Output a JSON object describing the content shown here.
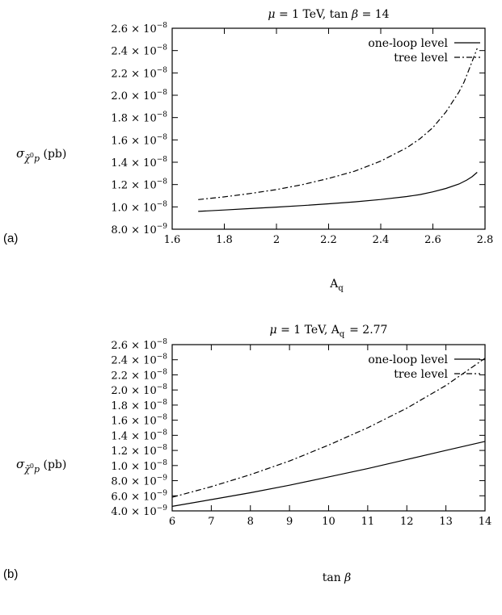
{
  "chart_data": [
    {
      "panel": "(a)",
      "type": "line",
      "title": "μ = 1 TeV, tan β = 14",
      "xlabel": "A_q",
      "ylabel": "σ_χ̃⁰p (pb)",
      "xlim": [
        1.6,
        2.8
      ],
      "ylim": [
        8e-09,
        2.6e-08
      ],
      "x_ticks": [
        1.6,
        1.8,
        2.0,
        2.2,
        2.4,
        2.6,
        2.8
      ],
      "x_tick_labels": [
        "1.6",
        "1.8",
        "2",
        "2.2",
        "2.4",
        "2.6",
        "2.8"
      ],
      "y_ticks": [
        8e-09,
        1e-08,
        1.2e-08,
        1.4e-08,
        1.6e-08,
        1.8e-08,
        2e-08,
        2.2e-08,
        2.4e-08,
        2.6e-08
      ],
      "y_tick_labels": [
        {
          "mant": "8.0",
          "exp": "−9"
        },
        {
          "mant": "1.0",
          "exp": "−8"
        },
        {
          "mant": "1.2",
          "exp": "−8"
        },
        {
          "mant": "1.4",
          "exp": "−8"
        },
        {
          "mant": "1.6",
          "exp": "−8"
        },
        {
          "mant": "1.8",
          "exp": "−8"
        },
        {
          "mant": "2.0",
          "exp": "−8"
        },
        {
          "mant": "2.2",
          "exp": "−8"
        },
        {
          "mant": "2.4",
          "exp": "−8"
        },
        {
          "mant": "2.6",
          "exp": "−8"
        }
      ],
      "legend_position": "top-right",
      "series": [
        {
          "name": "one-loop level",
          "style": "solid",
          "x": [
            1.7,
            1.8,
            1.9,
            2.0,
            2.1,
            2.2,
            2.3,
            2.4,
            2.5,
            2.55,
            2.6,
            2.65,
            2.7,
            2.73,
            2.75,
            2.77
          ],
          "y": [
            9.6e-09,
            9.72e-09,
            9.85e-09,
            9.98e-09,
            1.012e-08,
            1.028e-08,
            1.045e-08,
            1.066e-08,
            1.093e-08,
            1.11e-08,
            1.135e-08,
            1.165e-08,
            1.205e-08,
            1.24e-08,
            1.27e-08,
            1.31e-08
          ]
        },
        {
          "name": "tree level",
          "style": "dashdot",
          "x": [
            1.7,
            1.8,
            1.9,
            2.0,
            2.1,
            2.2,
            2.3,
            2.4,
            2.5,
            2.55,
            2.6,
            2.65,
            2.7,
            2.72,
            2.74,
            2.76,
            2.77
          ],
          "y": [
            1.065e-08,
            1.09e-08,
            1.12e-08,
            1.155e-08,
            1.2e-08,
            1.255e-08,
            1.32e-08,
            1.41e-08,
            1.53e-08,
            1.61e-08,
            1.71e-08,
            1.85e-08,
            2.03e-08,
            2.12e-08,
            2.24e-08,
            2.36e-08,
            2.42e-08
          ]
        }
      ]
    },
    {
      "panel": "(b)",
      "type": "line",
      "title": "μ = 1 TeV, A_q = 2.77",
      "xlabel": "tan β",
      "ylabel": "σ_χ̃⁰p (pb)",
      "xlim": [
        6,
        14
      ],
      "ylim": [
        4e-09,
        2.6e-08
      ],
      "x_ticks": [
        6,
        7,
        8,
        9,
        10,
        11,
        12,
        13,
        14
      ],
      "x_tick_labels": [
        "6",
        "7",
        "8",
        "9",
        "10",
        "11",
        "12",
        "13",
        "14"
      ],
      "y_ticks": [
        4e-09,
        6e-09,
        8e-09,
        1e-08,
        1.2e-08,
        1.4e-08,
        1.6e-08,
        1.8e-08,
        2e-08,
        2.2e-08,
        2.4e-08,
        2.6e-08
      ],
      "y_tick_labels": [
        {
          "mant": "4.0",
          "exp": "−9"
        },
        {
          "mant": "6.0",
          "exp": "−9"
        },
        {
          "mant": "8.0",
          "exp": "−9"
        },
        {
          "mant": "1.0",
          "exp": "−8"
        },
        {
          "mant": "1.2",
          "exp": "−8"
        },
        {
          "mant": "1.4",
          "exp": "−8"
        },
        {
          "mant": "1.6",
          "exp": "−8"
        },
        {
          "mant": "1.8",
          "exp": "−8"
        },
        {
          "mant": "2.0",
          "exp": "−8"
        },
        {
          "mant": "2.2",
          "exp": "−8"
        },
        {
          "mant": "2.4",
          "exp": "−8"
        },
        {
          "mant": "2.6",
          "exp": "−8"
        }
      ],
      "legend_position": "top-right",
      "series": [
        {
          "name": "one-loop level",
          "style": "solid",
          "x": [
            6,
            7,
            8,
            9,
            10,
            11,
            12,
            13,
            14
          ],
          "y": [
            4.6e-09,
            5.5e-09,
            6.4e-09,
            7.4e-09,
            8.5e-09,
            9.6e-09,
            1.08e-08,
            1.2e-08,
            1.32e-08
          ]
        },
        {
          "name": "tree level",
          "style": "dashdot",
          "x": [
            6,
            7,
            8,
            9,
            10,
            11,
            12,
            13,
            14
          ],
          "y": [
            5.8e-09,
            7.2e-09,
            8.8e-09,
            1.06e-08,
            1.27e-08,
            1.5e-08,
            1.76e-08,
            2.06e-08,
            2.42e-08
          ]
        }
      ]
    }
  ]
}
